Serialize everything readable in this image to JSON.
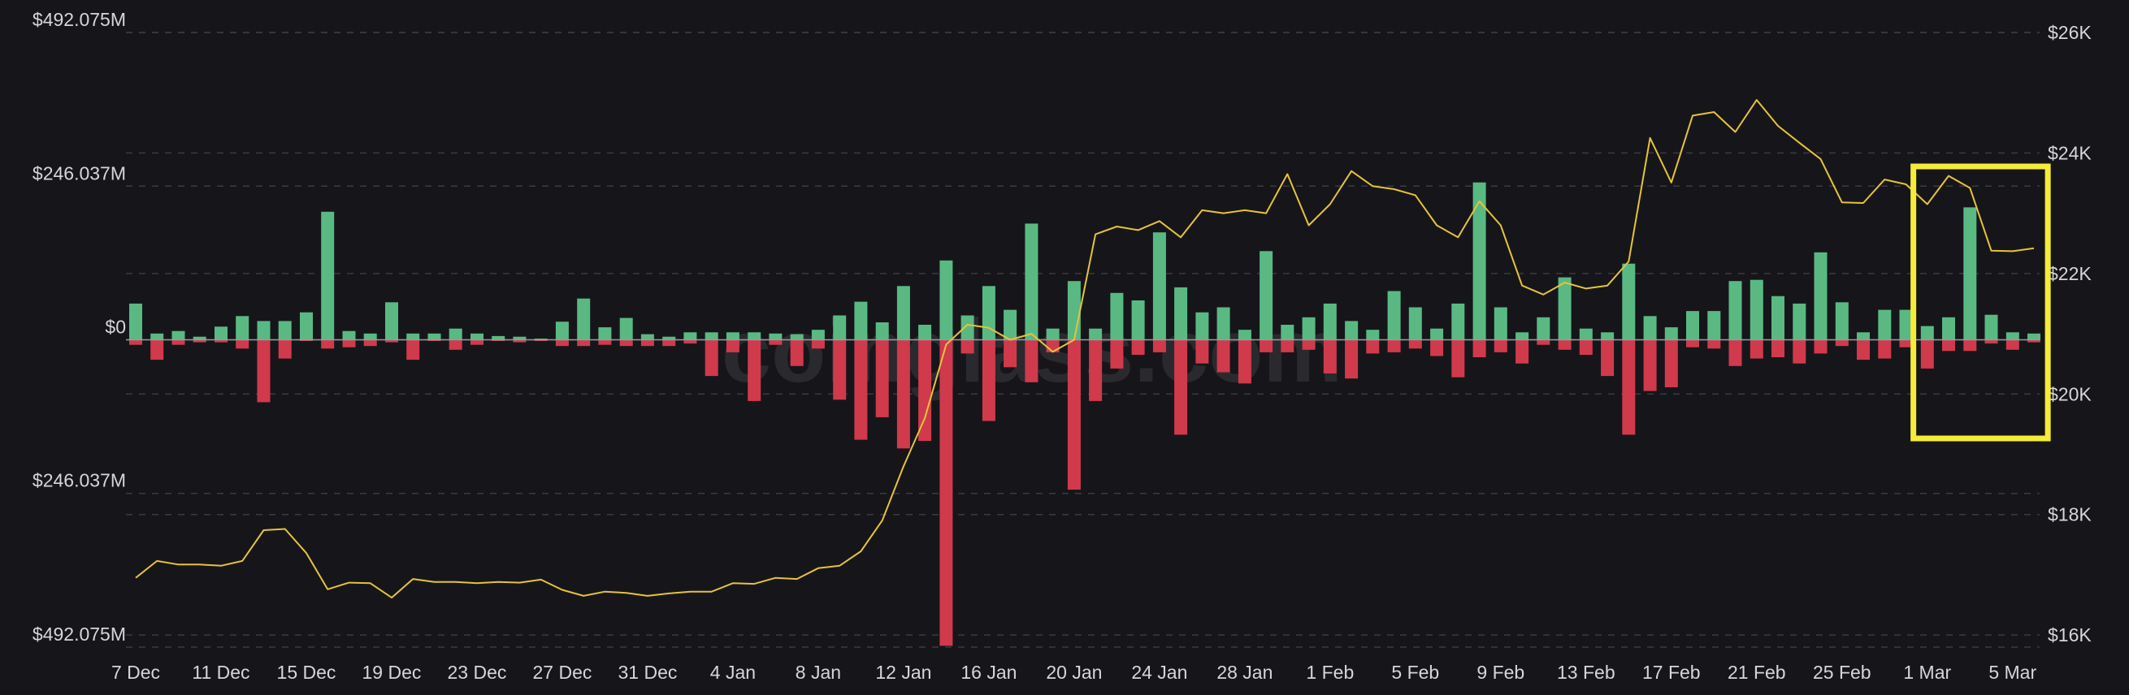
{
  "watermark": "coinglass.com",
  "colors": {
    "background": "#16161a",
    "inflow": "#5ab983",
    "outflow": "#d03a4c",
    "price_line": "#e6c33a",
    "highlight": "#f5ec3a",
    "grid": "#3a3a40",
    "text": "#d6d6da"
  },
  "chart_data": {
    "type": "bar",
    "title": "",
    "xlabel": "",
    "ylabel": "",
    "legend": "none",
    "grid": true,
    "x": [
      "7 Dec",
      "8 Dec",
      "9 Dec",
      "10 Dec",
      "11 Dec",
      "12 Dec",
      "13 Dec",
      "14 Dec",
      "15 Dec",
      "16 Dec",
      "17 Dec",
      "18 Dec",
      "19 Dec",
      "20 Dec",
      "21 Dec",
      "22 Dec",
      "23 Dec",
      "24 Dec",
      "25 Dec",
      "26 Dec",
      "27 Dec",
      "28 Dec",
      "29 Dec",
      "30 Dec",
      "31 Dec",
      "1 Jan",
      "2 Jan",
      "3 Jan",
      "4 Jan",
      "5 Jan",
      "6 Jan",
      "7 Jan",
      "8 Jan",
      "9 Jan",
      "10 Jan",
      "11 Jan",
      "12 Jan",
      "13 Jan",
      "14 Jan",
      "15 Jan",
      "16 Jan",
      "17 Jan",
      "18 Jan",
      "19 Jan",
      "20 Jan",
      "21 Jan",
      "22 Jan",
      "23 Jan",
      "24 Jan",
      "25 Jan",
      "26 Jan",
      "27 Jan",
      "28 Jan",
      "29 Jan",
      "30 Jan",
      "31 Jan",
      "1 Feb",
      "2 Feb",
      "3 Feb",
      "4 Feb",
      "5 Feb",
      "6 Feb",
      "7 Feb",
      "8 Feb",
      "9 Feb",
      "10 Feb",
      "11 Feb",
      "12 Feb",
      "13 Feb",
      "14 Feb",
      "15 Feb",
      "16 Feb",
      "17 Feb",
      "18 Feb",
      "19 Feb",
      "20 Feb",
      "21 Feb",
      "22 Feb",
      "23 Feb",
      "24 Feb",
      "25 Feb",
      "26 Feb",
      "27 Feb",
      "28 Feb",
      "1 Mar",
      "2 Mar",
      "3 Mar",
      "4 Mar",
      "5 Mar",
      "6 Mar"
    ],
    "x_tick_labels": [
      "7 Dec",
      "11 Dec",
      "15 Dec",
      "19 Dec",
      "23 Dec",
      "27 Dec",
      "31 Dec",
      "4 Jan",
      "8 Jan",
      "12 Jan",
      "16 Jan",
      "20 Jan",
      "24 Jan",
      "28 Jan",
      "1 Feb",
      "5 Feb",
      "9 Feb",
      "13 Feb",
      "17 Feb",
      "21 Feb",
      "25 Feb",
      "1 Mar",
      "5 Mar"
    ],
    "y_left": {
      "ticks": [
        492075000,
        246037000,
        0,
        -246037000,
        -492075000
      ],
      "tick_labels": [
        "$492.075M",
        "$246.037M",
        "$0",
        "$246.037M",
        "$492.075M"
      ],
      "range": [
        -492075000,
        492075000
      ]
    },
    "y_right": {
      "ticks": [
        26000,
        24000,
        22000,
        20000,
        18000,
        16000
      ],
      "tick_labels": [
        "$26K",
        "$24K",
        "$22K",
        "$20K",
        "$18K",
        "$16K"
      ],
      "range": [
        15800,
        26000
      ]
    },
    "series": [
      {
        "axis": "left",
        "kind": "bar",
        "values": [
          58000000,
          10000000,
          14000000,
          5000000,
          21000000,
          38000000,
          30000000,
          30000000,
          44000000,
          205000000,
          14000000,
          10000000,
          60000000,
          10000000,
          10000000,
          18000000,
          10000000,
          6000000,
          5000000,
          2000000,
          29000000,
          66000000,
          20000000,
          35000000,
          9000000,
          5000000,
          12000000,
          12000000,
          12000000,
          12000000,
          10000000,
          9000000,
          16000000,
          39000000,
          61000000,
          28000000,
          86000000,
          24000000,
          127000000,
          39000000,
          86000000,
          48000000,
          186000000,
          18000000,
          94000000,
          18000000,
          75000000,
          63000000,
          172000000,
          84000000,
          44000000,
          52000000,
          16000000,
          142000000,
          24000000,
          36000000,
          58000000,
          30000000,
          16000000,
          78000000,
          52000000,
          18000000,
          58000000,
          252000000,
          52000000,
          12000000,
          36000000,
          100000000,
          18000000,
          12000000,
          122000000,
          38000000,
          20000000,
          46000000,
          46000000,
          94000000,
          96000000,
          70000000,
          58000000,
          140000000,
          60000000,
          12000000,
          48000000,
          48000000,
          22000000,
          36000000,
          212000000,
          40000000,
          12000000,
          10000000
        ]
      },
      {
        "axis": "left",
        "kind": "bar",
        "values": [
          -8000000,
          -32000000,
          -8000000,
          -4000000,
          -4000000,
          -14000000,
          -100000000,
          -30000000,
          -2000000,
          -14000000,
          -12000000,
          -10000000,
          -4000000,
          -32000000,
          -2000000,
          -16000000,
          -8000000,
          -2000000,
          -4000000,
          -2000000,
          -10000000,
          -10000000,
          -8000000,
          -10000000,
          -10000000,
          -10000000,
          -6000000,
          -58000000,
          -20000000,
          -98000000,
          -8000000,
          -42000000,
          -14000000,
          -96000000,
          -160000000,
          -124000000,
          -174000000,
          -162000000,
          -490000000,
          -22000000,
          -130000000,
          -44000000,
          -68000000,
          -20000000,
          -240000000,
          -98000000,
          -46000000,
          -24000000,
          -20000000,
          -152000000,
          -38000000,
          -52000000,
          -70000000,
          -20000000,
          -20000000,
          -16000000,
          -54000000,
          -62000000,
          -22000000,
          -20000000,
          -14000000,
          -26000000,
          -60000000,
          -28000000,
          -20000000,
          -38000000,
          -8000000,
          -16000000,
          -24000000,
          -58000000,
          -152000000,
          -82000000,
          -76000000,
          -12000000,
          -14000000,
          -42000000,
          -30000000,
          -28000000,
          -38000000,
          -22000000,
          -10000000,
          -32000000,
          -30000000,
          -12000000,
          -46000000,
          -18000000,
          -18000000,
          -6000000,
          -16000000,
          -4000000
        ]
      },
      {
        "axis": "right",
        "kind": "line",
        "values": [
          16950,
          17230,
          17170,
          17170,
          17150,
          17230,
          17740,
          17760,
          17360,
          16760,
          16870,
          16860,
          16620,
          16930,
          16880,
          16880,
          16860,
          16880,
          16870,
          16920,
          16750,
          16650,
          16720,
          16700,
          16650,
          16690,
          16720,
          16720,
          16860,
          16850,
          16950,
          16930,
          17110,
          17150,
          17390,
          17900,
          18800,
          19600,
          20820,
          21150,
          21100,
          20900,
          21000,
          20700,
          20900,
          22650,
          22780,
          22720,
          22870,
          22600,
          23050,
          23000,
          23050,
          23000,
          23650,
          22800,
          23150,
          23700,
          23450,
          23400,
          23300,
          22800,
          22600,
          23200,
          22800,
          21800,
          21650,
          21850,
          21750,
          21800,
          22200,
          24250,
          23510,
          24620,
          24680,
          24350,
          24880,
          24450,
          24170,
          23900,
          23180,
          23170,
          23560,
          23480,
          23150,
          23620,
          23420,
          22380,
          22370,
          22420
        ]
      }
    ],
    "annotations": [
      {
        "type": "highlight-box",
        "x_start": "1 Mar",
        "x_end": "6 Mar"
      }
    ]
  }
}
